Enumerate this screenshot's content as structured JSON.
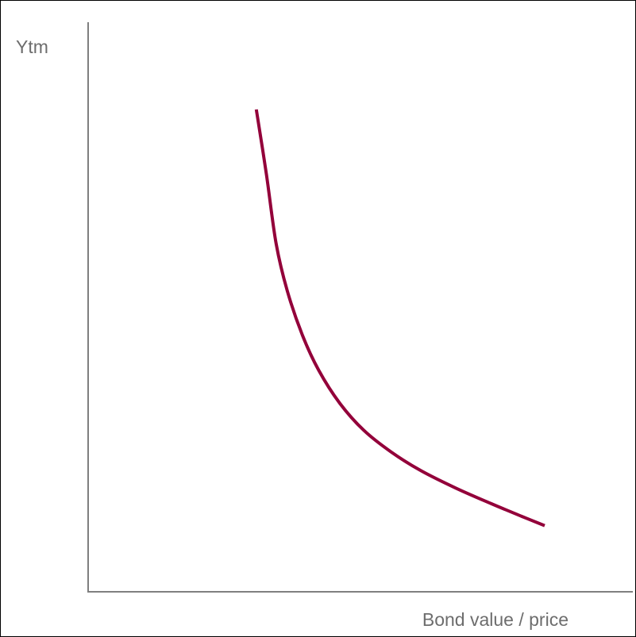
{
  "chart_data": {
    "type": "line",
    "title": "",
    "xlabel": "Bond value / price",
    "ylabel": "Ytm",
    "grid": false,
    "legend": "none",
    "xlim": [
      0,
      100
    ],
    "ylim": [
      0,
      100
    ],
    "axis_color": "#7f7f7f",
    "label_color": "#6d6d6d",
    "series": [
      {
        "color": "#93003a",
        "x": [
          20,
          22.8,
          25.5,
          28.6,
          32.8,
          37.3,
          43.1,
          49.8,
          57.4,
          65.7,
          75.4,
          85.1,
          93.6,
          100
        ],
        "y": [
          100,
          84.8,
          68.5,
          57.4,
          47.0,
          38.8,
          31.1,
          24.7,
          19.6,
          15.2,
          11.1,
          7.5,
          4.5,
          2.3
        ]
      }
    ]
  }
}
